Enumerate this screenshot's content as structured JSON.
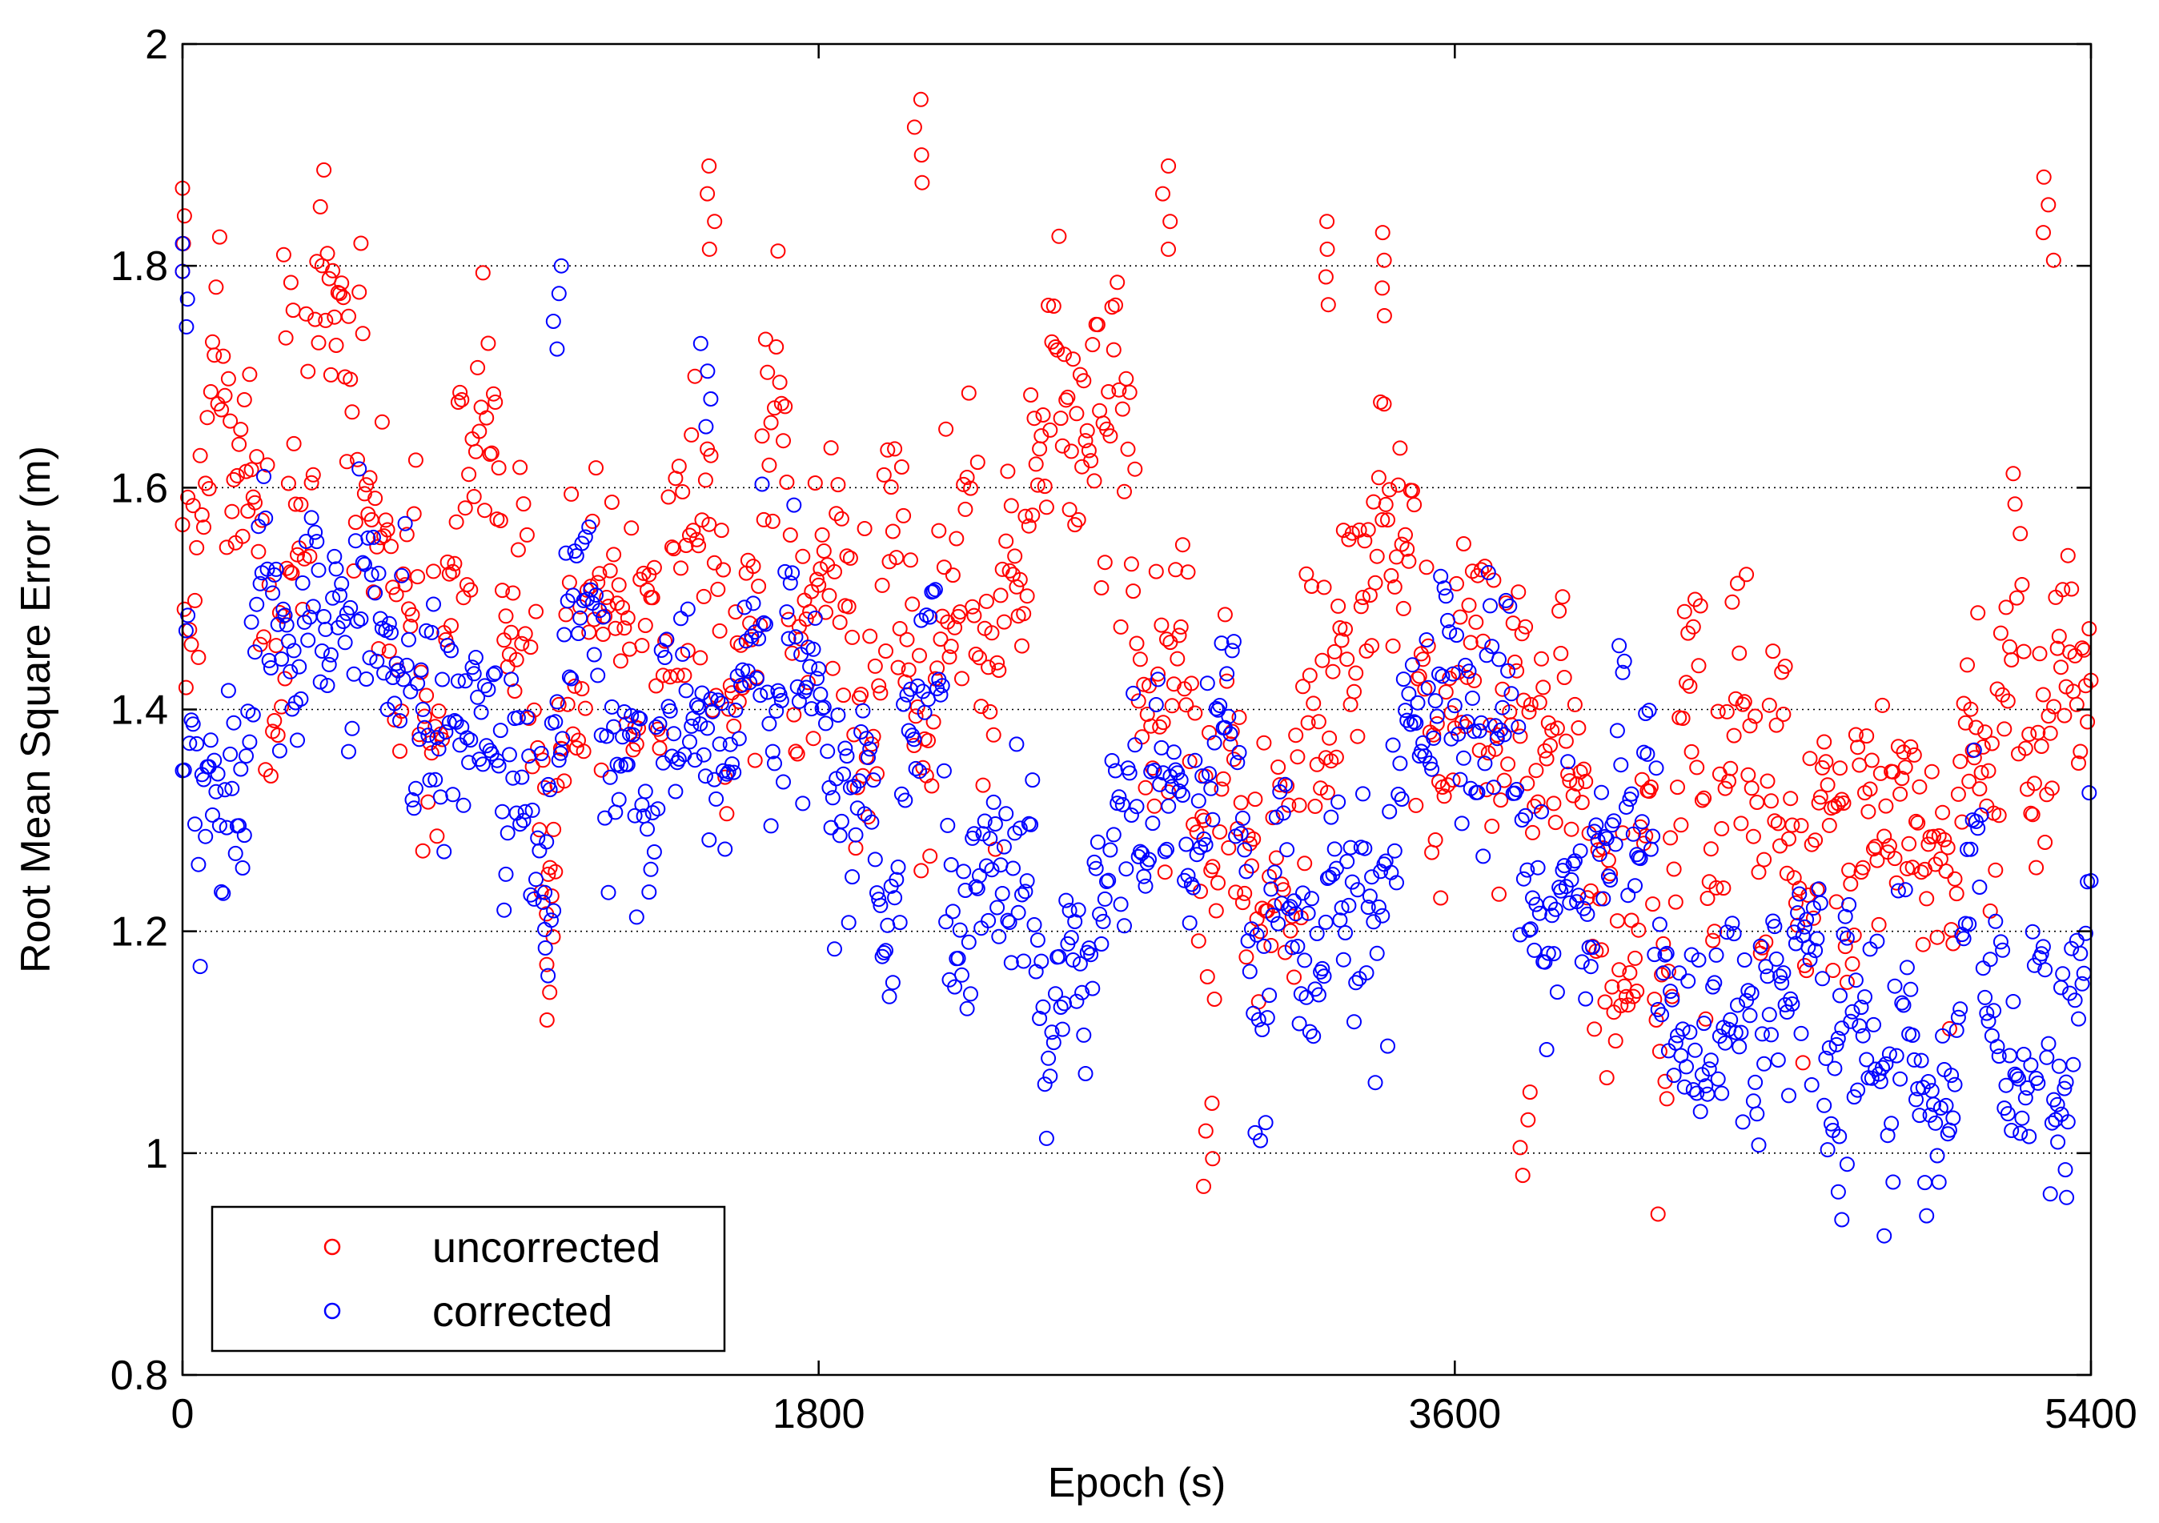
{
  "chart_data": {
    "type": "scatter",
    "title": "",
    "xlabel": "Epoch (s)",
    "ylabel": "Root Mean Square Error (m)",
    "xlim": [
      0,
      5400
    ],
    "ylim": [
      0.8,
      2.0
    ],
    "xticks": [
      0,
      1800,
      3600,
      5400
    ],
    "xtick_labels": [
      "0",
      "1800",
      "3600",
      "5400"
    ],
    "yticks": [
      0.8,
      1.0,
      1.2,
      1.4,
      1.6,
      1.8,
      2.0
    ],
    "ytick_labels": [
      "0.8",
      "1",
      "1.2",
      "1.4",
      "1.6",
      "1.8",
      "2"
    ],
    "grid": "horizontal dotted",
    "legend_position": "bottom-left",
    "sample_interval_s": 5,
    "series": [
      {
        "name": "uncorrected",
        "label": "uncorrected",
        "color": "#ff0000",
        "marker": "circle-open",
        "trend_epochs": [
          0,
          300,
          600,
          900,
          1050,
          1200,
          1500,
          1800,
          2100,
          2400,
          2700,
          2900,
          3100,
          3300,
          3600,
          3800,
          4000,
          4300,
          4600,
          4700,
          4900,
          5100,
          5400
        ],
        "trend_rmse": [
          1.5,
          1.55,
          1.48,
          1.5,
          1.35,
          1.52,
          1.55,
          1.5,
          1.58,
          1.55,
          1.5,
          1.2,
          1.45,
          1.55,
          1.48,
          1.32,
          1.3,
          1.4,
          1.3,
          1.22,
          1.4,
          1.42,
          1.4
        ],
        "spread": 0.12,
        "peaks": [
          {
            "epoch": 0,
            "rmse": 1.87
          },
          {
            "epoch": 300,
            "rmse": 1.81
          },
          {
            "epoch": 1500,
            "rmse": 1.89
          },
          {
            "epoch": 2080,
            "rmse": 1.95
          },
          {
            "epoch": 2780,
            "rmse": 1.89
          },
          {
            "epoch": 3240,
            "rmse": 1.84
          },
          {
            "epoch": 3400,
            "rmse": 1.83
          },
          {
            "epoch": 5280,
            "rmse": 1.88
          }
        ],
        "dips": [
          {
            "epoch": 1040,
            "rmse": 1.12
          },
          {
            "epoch": 2900,
            "rmse": 0.97
          },
          {
            "epoch": 3800,
            "rmse": 0.98
          }
        ]
      },
      {
        "name": "corrected",
        "label": "corrected",
        "color": "#0000ff",
        "marker": "circle-open",
        "trend_epochs": [
          0,
          300,
          600,
          900,
          1050,
          1200,
          1500,
          1800,
          2100,
          2400,
          2700,
          2900,
          3100,
          3300,
          3600,
          3800,
          4000,
          4300,
          4600,
          4700,
          4900,
          5100,
          5400
        ],
        "trend_rmse": [
          1.4,
          1.38,
          1.42,
          1.4,
          1.4,
          1.45,
          1.45,
          1.38,
          1.35,
          1.32,
          1.3,
          1.28,
          1.3,
          1.35,
          1.32,
          1.28,
          1.26,
          1.22,
          1.18,
          1.12,
          1.1,
          1.15,
          1.25
        ],
        "spread": 0.09,
        "peaks": [
          {
            "epoch": 0,
            "rmse": 1.82
          },
          {
            "epoch": 1060,
            "rmse": 1.8
          },
          {
            "epoch": 1480,
            "rmse": 1.73
          }
        ],
        "dips": [
          {
            "epoch": 1040,
            "rmse": 1.16
          },
          {
            "epoch": 4700,
            "rmse": 0.94
          },
          {
            "epoch": 5320,
            "rmse": 0.96
          }
        ]
      }
    ]
  }
}
